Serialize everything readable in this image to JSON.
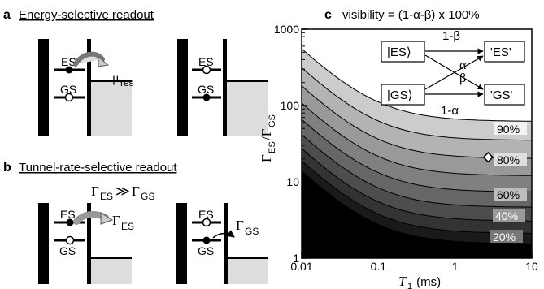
{
  "panel_a": {
    "letter": "a",
    "title": "Energy-selective readout",
    "es_label": "ES",
    "gs_label": "GS",
    "mu_symbol": "μ",
    "mu_sub": "res"
  },
  "panel_b": {
    "letter": "b",
    "title": "Tunnel-rate-selective readout",
    "condition_gamma1": "Γ",
    "condition_sub1": "ES",
    "condition_op": "≫",
    "condition_gamma2": "Γ",
    "condition_sub2": "GS",
    "es_label": "ES",
    "gs_label": "GS",
    "gamma": "Γ",
    "rate_es_sub": "ES",
    "rate_gs_sub": "GS"
  },
  "panel_c": {
    "letter": "c",
    "title": "visibility = (1-α-β) x 100%",
    "inset": {
      "state_es": "|ES⟩",
      "state_gs": "|GS⟩",
      "out_es": "'ES'",
      "out_gs": "'GS'",
      "p_es_es": "1-β",
      "p_gs_es": "α",
      "p_es_gs": "β",
      "p_gs_gs": "1-α"
    }
  },
  "chart_data": {
    "type": "heatmap",
    "title": "visibility = (1-α-β) x 100%",
    "xlabel_symbol": "T",
    "xlabel_sub": "1",
    "xlabel_unit": " (ms)",
    "ylabel_symbol": "Γ",
    "ylabel_sub1": "ES",
    "ylabel_mid": "/Γ",
    "ylabel_sub2": "GS",
    "xscale": "log",
    "yscale": "log",
    "xlim": [
      0.01,
      10
    ],
    "ylim": [
      1,
      1000
    ],
    "x_ticks": [
      "0.01",
      "0.1",
      "1",
      "10"
    ],
    "y_ticks": [
      "1",
      "10",
      "100",
      "1000"
    ],
    "contour_levels_percent": [
      10,
      20,
      30,
      40,
      50,
      60,
      70,
      80,
      90
    ],
    "contour_labels": [
      "20%",
      "40%",
      "60%",
      "80%",
      "90%"
    ],
    "marker": {
      "x": 2.7,
      "y": 21,
      "shape": "diamond"
    },
    "colors": {
      "low": "#000000",
      "high": "#ffffff"
    }
  }
}
